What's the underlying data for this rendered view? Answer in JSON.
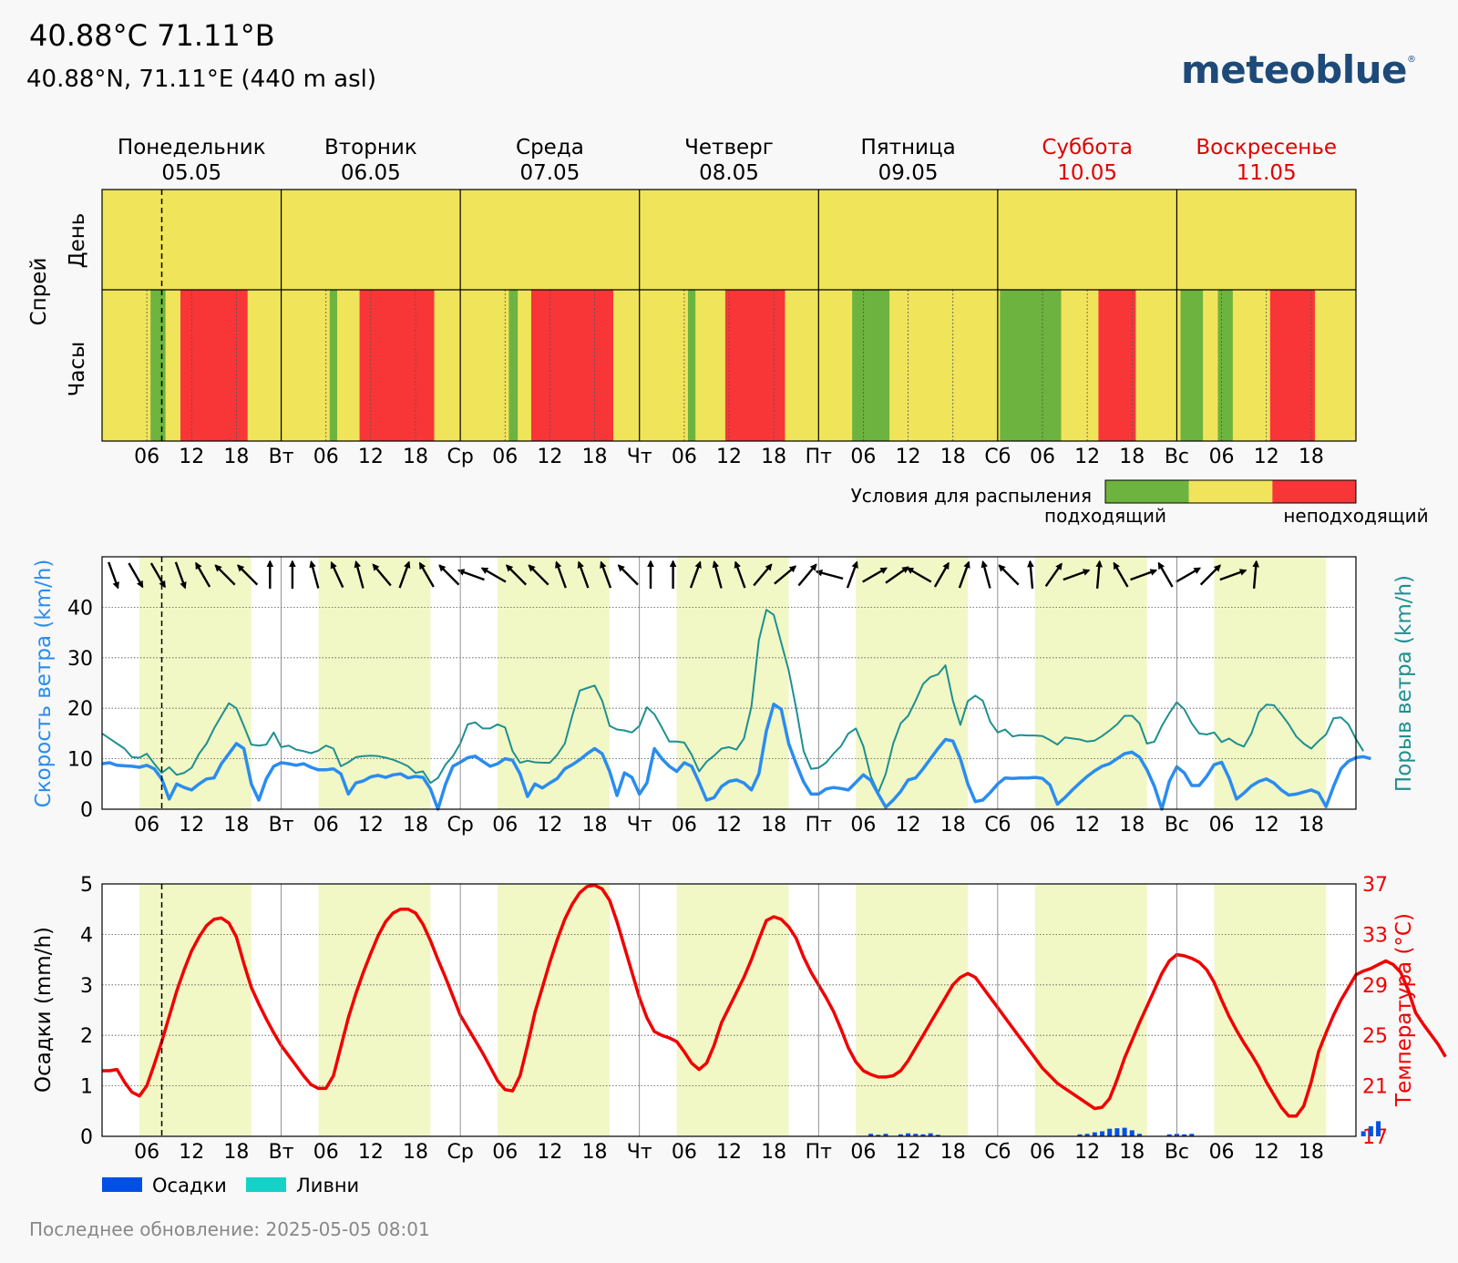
{
  "header": {
    "title": "40.88°C 71.11°B",
    "subtitle": "40.88°N, 71.11°E (440 m asl)",
    "logo": "meteoblue",
    "footer": "Последнее обновление: 2025-05-05 08:01"
  },
  "colors": {
    "suitable": "#6db33f",
    "neutral": "#f0e45a",
    "unsuitable": "#f83638",
    "wind_speed": "#2a8cf0",
    "wind_gust": "#1e9090",
    "temperature": "#f00000",
    "precip": "#0050e6",
    "showers": "#14d2c8",
    "weekend": "#e00000",
    "day_band": "#f2f7c6"
  },
  "days": [
    {
      "name": "Понедельник",
      "date": "05.05",
      "abbr": "",
      "weekend": false
    },
    {
      "name": "Вторник",
      "date": "06.05",
      "abbr": "Вт",
      "weekend": false
    },
    {
      "name": "Среда",
      "date": "07.05",
      "abbr": "Ср",
      "weekend": false
    },
    {
      "name": "Четверг",
      "date": "08.05",
      "abbr": "Чт",
      "weekend": false
    },
    {
      "name": "Пятница",
      "date": "09.05",
      "abbr": "Пт",
      "weekend": false
    },
    {
      "name": "Суббота",
      "date": "10.05",
      "abbr": "Сб",
      "weekend": true
    },
    {
      "name": "Воскресенье",
      "date": "11.05",
      "abbr": "Вс",
      "weekend": true
    }
  ],
  "hour_ticks": [
    "06",
    "12",
    "18"
  ],
  "now_hour": 8,
  "chart_data": [
    {
      "type": "heatmap",
      "title": "Спрей",
      "row_labels": [
        "День",
        "Часы"
      ],
      "legend_title": "Условия для распыления",
      "legend_left": "подходящий",
      "legend_right": "неподходящий",
      "daily": [
        "neutral",
        "neutral",
        "neutral",
        "neutral",
        "neutral",
        "neutral",
        "neutral"
      ],
      "hourly_segments": [
        {
          "day": 0,
          "from": 6.5,
          "to": 8.5,
          "class": "suitable"
        },
        {
          "day": 0,
          "from": 10.5,
          "to": 19.5,
          "class": "unsuitable"
        },
        {
          "day": 1,
          "from": 6.5,
          "to": 7.5,
          "class": "suitable"
        },
        {
          "day": 1,
          "from": 10.5,
          "to": 20.5,
          "class": "unsuitable"
        },
        {
          "day": 2,
          "from": 6.5,
          "to": 7.7,
          "class": "suitable"
        },
        {
          "day": 2,
          "from": 9.5,
          "to": 20.5,
          "class": "unsuitable"
        },
        {
          "day": 3,
          "from": 6.5,
          "to": 7.5,
          "class": "suitable"
        },
        {
          "day": 3,
          "from": 11.5,
          "to": 19.5,
          "class": "unsuitable"
        },
        {
          "day": 4,
          "from": 4.5,
          "to": 9.5,
          "class": "suitable"
        },
        {
          "day": 5,
          "from": 0.3,
          "to": 8.5,
          "class": "suitable"
        },
        {
          "day": 5,
          "from": 13.5,
          "to": 18.5,
          "class": "unsuitable"
        },
        {
          "day": 6,
          "from": 0.5,
          "to": 3.5,
          "class": "suitable"
        },
        {
          "day": 6,
          "from": 5.5,
          "to": 7.5,
          "class": "suitable"
        },
        {
          "day": 6,
          "from": 12.5,
          "to": 18.5,
          "class": "unsuitable"
        }
      ]
    },
    {
      "type": "line",
      "ylabel": "Скорость ветра (km/h)",
      "y2label": "Порыв ветра (km/h)",
      "ylim": [
        0,
        50
      ],
      "yticks": [
        0,
        10,
        20,
        30,
        40
      ],
      "series": [
        {
          "key": "speed",
          "values": [
            9,
            9.2,
            8.7,
            8.6,
            8.5,
            8.3,
            8.7,
            8,
            6,
            2,
            5,
            4.3,
            3.8,
            5,
            6,
            6.2,
            9,
            11,
            13,
            12,
            5,
            1.8,
            6,
            8.5,
            9.2,
            9,
            8.7,
            9,
            8.3,
            7.8,
            7.8,
            8,
            7,
            3,
            5.2,
            5.6,
            6.4,
            6.7,
            6.3,
            6.8,
            7,
            6.2,
            6.5,
            6.3,
            4,
            0,
            4.9,
            8.5,
            9.3,
            10.2,
            10.5,
            9.5,
            8.5,
            9,
            10,
            9.7,
            7,
            2.5,
            5,
            4.2,
            5.2,
            6.1,
            8,
            8.8,
            9.8,
            11,
            12,
            11,
            7.5,
            2.7,
            7.2,
            6.3,
            3,
            5.2,
            12,
            10,
            8.5,
            7.5,
            9.2,
            8.5,
            5.3,
            1.8,
            2.3,
            4.5,
            5.5,
            5.8,
            5.2,
            3.8,
            7,
            15.5,
            20.8,
            19.8,
            13,
            9,
            5.4,
            3,
            3,
            4,
            4.3,
            4.1,
            3.8,
            5.3,
            6.8,
            5.7,
            3,
            0.4,
            1.8,
            3.5,
            5.8,
            6.2,
            8,
            10,
            12,
            13.8,
            13.5,
            10,
            5,
            1.5,
            1.8,
            3.3,
            5,
            6.2,
            6.1,
            6.2,
            6.2,
            6.3,
            6.1,
            4.8,
            1,
            2.3,
            3.8,
            5.2,
            6.5,
            7.6,
            8.5,
            9,
            10,
            11,
            11.3,
            10.3,
            7.8,
            4.5,
            0,
            5.5,
            8.4,
            7.2,
            4.7,
            4.7,
            6.5,
            8.8,
            9.3,
            6.2,
            2,
            3.2,
            4.6,
            5.5,
            6,
            5.2,
            3.8,
            2.8,
            3,
            3.4,
            3.8,
            3.2,
            0.5,
            4.5,
            8,
            9.5,
            10.2,
            10.4,
            10
          ]
        },
        {
          "key": "gust",
          "values": [
            15,
            14,
            13,
            12,
            10.3,
            10.2,
            11,
            9,
            7.2,
            8.3,
            6.8,
            7.2,
            8.2,
            11,
            13,
            16,
            18.5,
            21,
            20,
            16.5,
            12.8,
            12.6,
            12.8,
            15.2,
            12.3,
            12.6,
            11.8,
            11.5,
            11.1,
            11.6,
            12.6,
            12,
            8.5,
            9.3,
            10.3,
            10.5,
            10.6,
            10.5,
            10.2,
            9.8,
            9.2,
            8.5,
            7.2,
            7.5,
            5.2,
            6.2,
            8.8,
            10.5,
            13,
            16.8,
            17.2,
            16,
            16,
            16.8,
            16.2,
            11.5,
            9.2,
            9.6,
            9.3,
            9.2,
            9.2,
            10.8,
            13,
            18.5,
            23.5,
            24,
            24.5,
            21.5,
            16.5,
            15.8,
            15.6,
            15.2,
            16.5,
            20.2,
            18.8,
            16.2,
            13.4,
            13.4,
            13.2,
            10.8,
            7.5,
            9.4,
            10.6,
            12,
            12.3,
            11.8,
            14,
            20.3,
            33.5,
            39.5,
            38.5,
            33,
            27.5,
            20,
            11.5,
            8,
            8.2,
            9.2,
            11,
            12.5,
            15,
            16,
            12.5,
            6.5,
            3.3,
            7,
            13,
            17,
            18.5,
            21.5,
            24.8,
            26.2,
            26.7,
            28.5,
            21.5,
            16.7,
            21.4,
            22.5,
            21.5,
            17.3,
            15.2,
            15.8,
            14.4,
            14.7,
            14.6,
            14.6,
            14.5,
            13.7,
            12.8,
            14.2,
            14,
            13.8,
            13.4,
            13.6,
            14.5,
            15.6,
            16.8,
            18.5,
            18.5,
            17,
            13,
            13.4,
            16.5,
            19,
            21.2,
            19.8,
            17,
            15,
            14.8,
            15.2,
            13.3,
            14,
            13,
            12.4,
            15,
            19.2,
            20.7,
            20.6,
            18.8,
            16.8,
            14.4,
            13,
            12,
            13.5,
            14.8,
            18,
            18.2,
            16.8,
            13.9,
            11.5
          ]
        }
      ],
      "wind_directions": [
        340,
        330,
        330,
        340,
        150,
        135,
        135,
        180,
        180,
        165,
        155,
        165,
        140,
        200,
        150,
        135,
        110,
        120,
        135,
        135,
        160,
        160,
        160,
        135,
        180,
        180,
        200,
        165,
        160,
        220,
        230,
        220,
        105,
        200,
        240,
        235,
        120,
        210,
        200,
        165,
        135,
        175,
        215,
        250,
        185,
        150,
        250,
        150,
        240,
        225,
        250,
        185
      ]
    },
    {
      "type": "line",
      "ylabel": "Осадки (mm/h)",
      "y2label": "Температура (°C)",
      "ylim": [
        0,
        5
      ],
      "yticks": [
        0,
        1,
        2,
        3,
        4,
        5
      ],
      "y2lim": [
        17,
        37
      ],
      "y2ticks": [
        17,
        21,
        25,
        29,
        33,
        37
      ],
      "legend": [
        "Осадки",
        "Ливни"
      ],
      "series": [
        {
          "key": "temperature",
          "values": [
            22.2,
            22.2,
            22.3,
            21.3,
            20.5,
            20.2,
            21,
            22.7,
            24.5,
            26.5,
            28.5,
            30.2,
            31.7,
            32.8,
            33.7,
            34.2,
            34.3,
            33.9,
            32.8,
            30.7,
            28.8,
            27.5,
            26.3,
            25.2,
            24.2,
            23.4,
            22.6,
            21.8,
            21.1,
            20.8,
            20.8,
            21.8,
            24.1,
            26.4,
            28.3,
            30,
            31.5,
            32.9,
            34,
            34.7,
            35,
            35,
            34.7,
            33.8,
            32.5,
            31,
            29.6,
            28.1,
            26.6,
            25.6,
            24.6,
            23.6,
            22.5,
            21.4,
            20.7,
            20.6,
            21.8,
            24.2,
            26.8,
            28.8,
            30.8,
            32.6,
            34.2,
            35.4,
            36.3,
            36.8,
            36.9,
            36.6,
            35.7,
            34,
            32,
            30,
            28,
            26.4,
            25.3,
            25,
            24.8,
            24.5,
            23.7,
            22.8,
            22.3,
            22.8,
            24.2,
            26,
            27.2,
            28.4,
            29.6,
            31,
            32.6,
            34.1,
            34.4,
            34.2,
            33.6,
            32.7,
            31.2,
            30,
            29,
            28,
            26.9,
            25.5,
            24,
            22.9,
            22.2,
            21.9,
            21.7,
            21.7,
            21.8,
            22.2,
            23,
            24,
            25,
            26,
            27,
            28,
            29,
            29.6,
            29.9,
            29.6,
            28.8,
            28,
            27.2,
            26.4,
            25.6,
            24.8,
            24,
            23.2,
            22.4,
            21.8,
            21.2,
            20.8,
            20.4,
            20,
            19.6,
            19.2,
            19.3,
            20,
            21.5,
            23.2,
            24.6,
            26,
            27.3,
            28.6,
            29.9,
            30.9,
            31.4,
            31.3,
            31.1,
            30.8,
            30.2,
            29.2,
            27.8,
            26.5,
            25.4,
            24.4,
            23.5,
            22.5,
            21.3,
            20.3,
            19.3,
            18.6,
            18.6,
            19.4,
            21.3,
            23.7,
            25.2,
            26.6,
            27.8,
            28.8,
            29.8,
            30.1,
            30.3,
            30.6,
            30.9,
            30.6,
            30,
            28.6,
            26.8,
            25.9,
            25.1,
            24.3,
            23.3
          ]
        },
        {
          "key": "precip",
          "points": [
            [
              103,
              0.05
            ],
            [
              104,
              0.03
            ],
            [
              105,
              0.05
            ],
            [
              107,
              0.04
            ],
            [
              108,
              0.06
            ],
            [
              109,
              0.05
            ],
            [
              110,
              0.04
            ],
            [
              111,
              0.06
            ],
            [
              112,
              0.03
            ],
            [
              131,
              0.04
            ],
            [
              132,
              0.05
            ],
            [
              133,
              0.08
            ],
            [
              134,
              0.1
            ],
            [
              135,
              0.15
            ],
            [
              136,
              0.16
            ],
            [
              137,
              0.17
            ],
            [
              138,
              0.12
            ],
            [
              139,
              0.05
            ],
            [
              143,
              0.04
            ],
            [
              144,
              0.05
            ],
            [
              145,
              0.04
            ],
            [
              146,
              0.05
            ],
            [
              169,
              0.1
            ],
            [
              170,
              0.2
            ],
            [
              171,
              0.3
            ]
          ]
        }
      ]
    }
  ]
}
